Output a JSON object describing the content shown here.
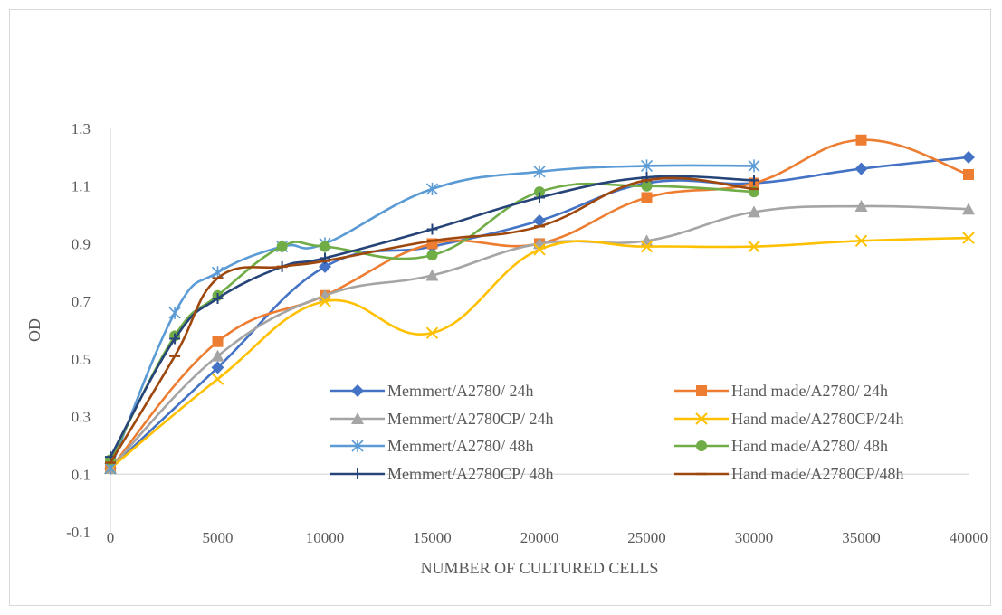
{
  "chart_data": {
    "type": "line",
    "title": "",
    "xlabel": "NUMBER OF CULTURED CELLS",
    "ylabel": "OD",
    "xlim": [
      0,
      40000
    ],
    "ylim": [
      -0.1,
      1.3
    ],
    "x_ticks": [
      "0",
      "5000",
      "10000",
      "15000",
      "20000",
      "25000",
      "30000",
      "35000",
      "40000"
    ],
    "y_ticks": [
      "1.3",
      "1.1",
      "0.9",
      "0.7",
      "0.5",
      "0.3",
      "0.1",
      "-0.1"
    ],
    "grid": false,
    "legend_position": "lower-right (inside plot)",
    "series": [
      {
        "name": "Memmert/A2780/ 24h",
        "color": "#4472c4",
        "marker": "diamond",
        "x": [
          0,
          5000,
          10000,
          15000,
          20000,
          25000,
          30000,
          35000,
          40000
        ],
        "y": [
          0.12,
          0.47,
          0.82,
          0.89,
          0.98,
          1.11,
          1.11,
          1.16,
          1.2
        ]
      },
      {
        "name": "Hand made/A2780/ 24h",
        "color": "#ed7d31",
        "marker": "square",
        "x": [
          0,
          5000,
          10000,
          15000,
          20000,
          25000,
          30000,
          35000,
          40000
        ],
        "y": [
          0.12,
          0.56,
          0.72,
          0.9,
          0.9,
          1.06,
          1.11,
          1.26,
          1.14
        ]
      },
      {
        "name": "Memmert/A2780CP/ 24h",
        "color": "#a5a5a5",
        "marker": "triangle",
        "x": [
          0,
          5000,
          10000,
          15000,
          20000,
          25000,
          30000,
          35000,
          40000
        ],
        "y": [
          0.12,
          0.51,
          0.72,
          0.79,
          0.9,
          0.91,
          1.01,
          1.03,
          1.02
        ]
      },
      {
        "name": "Hand made/A2780CP/24h",
        "color": "#ffc000",
        "marker": "x",
        "x": [
          0,
          5000,
          10000,
          15000,
          20000,
          25000,
          30000,
          35000,
          40000
        ],
        "y": [
          0.12,
          0.43,
          0.7,
          0.59,
          0.88,
          0.89,
          0.89,
          0.91,
          0.92
        ]
      },
      {
        "name": "Memmert/A2780/ 48h",
        "color": "#5b9bd5",
        "marker": "asterisk",
        "x": [
          0,
          3000,
          5000,
          8000,
          10000,
          15000,
          20000,
          25000,
          30000
        ],
        "y": [
          0.12,
          0.66,
          0.8,
          0.89,
          0.9,
          1.09,
          1.15,
          1.17,
          1.17
        ]
      },
      {
        "name": "Hand made/A2780/ 48h",
        "color": "#70ad47",
        "marker": "circle",
        "x": [
          0,
          3000,
          5000,
          8000,
          10000,
          15000,
          20000,
          25000,
          30000
        ],
        "y": [
          0.15,
          0.58,
          0.72,
          0.89,
          0.89,
          0.86,
          1.08,
          1.1,
          1.08
        ]
      },
      {
        "name": "Memmert/A2780CP/ 48h",
        "color": "#264478",
        "marker": "plus",
        "x": [
          0,
          3000,
          5000,
          8000,
          10000,
          15000,
          20000,
          25000,
          30000
        ],
        "y": [
          0.16,
          0.57,
          0.71,
          0.82,
          0.85,
          0.95,
          1.06,
          1.13,
          1.12
        ]
      },
      {
        "name": "Hand made/A2780CP/48h",
        "color": "#9e480e",
        "marker": "dash",
        "x": [
          0,
          3000,
          5000,
          8000,
          10000,
          15000,
          20000,
          25000,
          30000
        ],
        "y": [
          0.14,
          0.51,
          0.78,
          0.82,
          0.84,
          0.91,
          0.96,
          1.12,
          1.09
        ]
      }
    ]
  }
}
